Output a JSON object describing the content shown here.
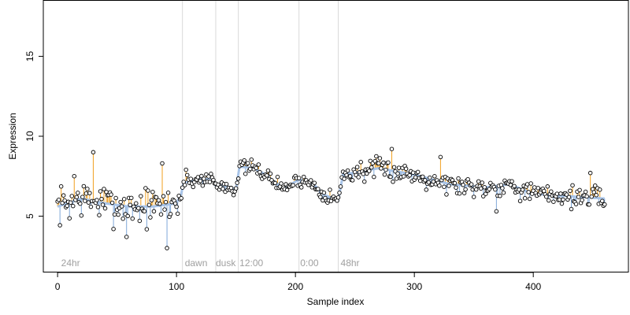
{
  "chart_data": {
    "type": "scatter",
    "title": "",
    "xlabel": "Sample index",
    "ylabel": "Expression",
    "xlim": [
      -12,
      480
    ],
    "ylim": [
      1.5,
      18.5
    ],
    "xticks": [
      0,
      100,
      200,
      300,
      400
    ],
    "yticks": [
      5,
      10,
      15
    ],
    "grid": false,
    "legend": "none",
    "colors": {
      "above_trend": "#f0a020",
      "below_trend": "#7fa7d8",
      "trend": "#a8c4e8",
      "points_fill": "#ffffff",
      "points_edge": "#000000",
      "vline": "#d9d9d9",
      "annotation": "#a0a0a0"
    },
    "vlines": [
      105,
      133,
      152,
      203,
      236
    ],
    "annotations": [
      {
        "x": 3,
        "text": "24hr"
      },
      {
        "x": 107,
        "text": "dawn"
      },
      {
        "x": 133,
        "text": "dusk"
      },
      {
        "x": 153,
        "text": "12:00"
      },
      {
        "x": 204,
        "text": "0:00"
      },
      {
        "x": 238,
        "text": "48hr"
      }
    ],
    "trend_knots": [
      [
        0,
        5.6
      ],
      [
        20,
        6.1
      ],
      [
        40,
        5.8
      ],
      [
        60,
        5.6
      ],
      [
        80,
        5.6
      ],
      [
        100,
        5.8
      ],
      [
        104,
        6.4
      ],
      [
        106,
        7.1
      ],
      [
        120,
        7.3
      ],
      [
        130,
        7.4
      ],
      [
        133,
        6.9
      ],
      [
        140,
        6.9
      ],
      [
        150,
        6.7
      ],
      [
        153,
        8.1
      ],
      [
        165,
        8.0
      ],
      [
        175,
        7.6
      ],
      [
        190,
        6.7
      ],
      [
        203,
        7.3
      ],
      [
        215,
        7.0
      ],
      [
        225,
        6.3
      ],
      [
        236,
        6.0
      ],
      [
        240,
        7.6
      ],
      [
        270,
        8.0
      ],
      [
        300,
        7.6
      ],
      [
        330,
        7.0
      ],
      [
        360,
        6.8
      ],
      [
        380,
        7.0
      ],
      [
        400,
        6.4
      ],
      [
        420,
        6.3
      ],
      [
        440,
        6.2
      ],
      [
        460,
        6.1
      ]
    ],
    "noise": {
      "seed": 7,
      "amp_by_segment": [
        {
          "from": 0,
          "to": 105,
          "amp": 1.5
        },
        {
          "from": 105,
          "to": 236,
          "amp": 0.55
        },
        {
          "from": 236,
          "to": 461,
          "amp": 0.8
        }
      ]
    },
    "outliers": [
      [
        30,
        9.0
      ],
      [
        92,
        3.0
      ],
      [
        88,
        8.3
      ],
      [
        108,
        7.9
      ],
      [
        281,
        9.2
      ],
      [
        322,
        8.7
      ],
      [
        448,
        7.7
      ],
      [
        58,
        3.7
      ],
      [
        369,
        5.3
      ],
      [
        14,
        7.5
      ]
    ],
    "n_points": 461
  }
}
